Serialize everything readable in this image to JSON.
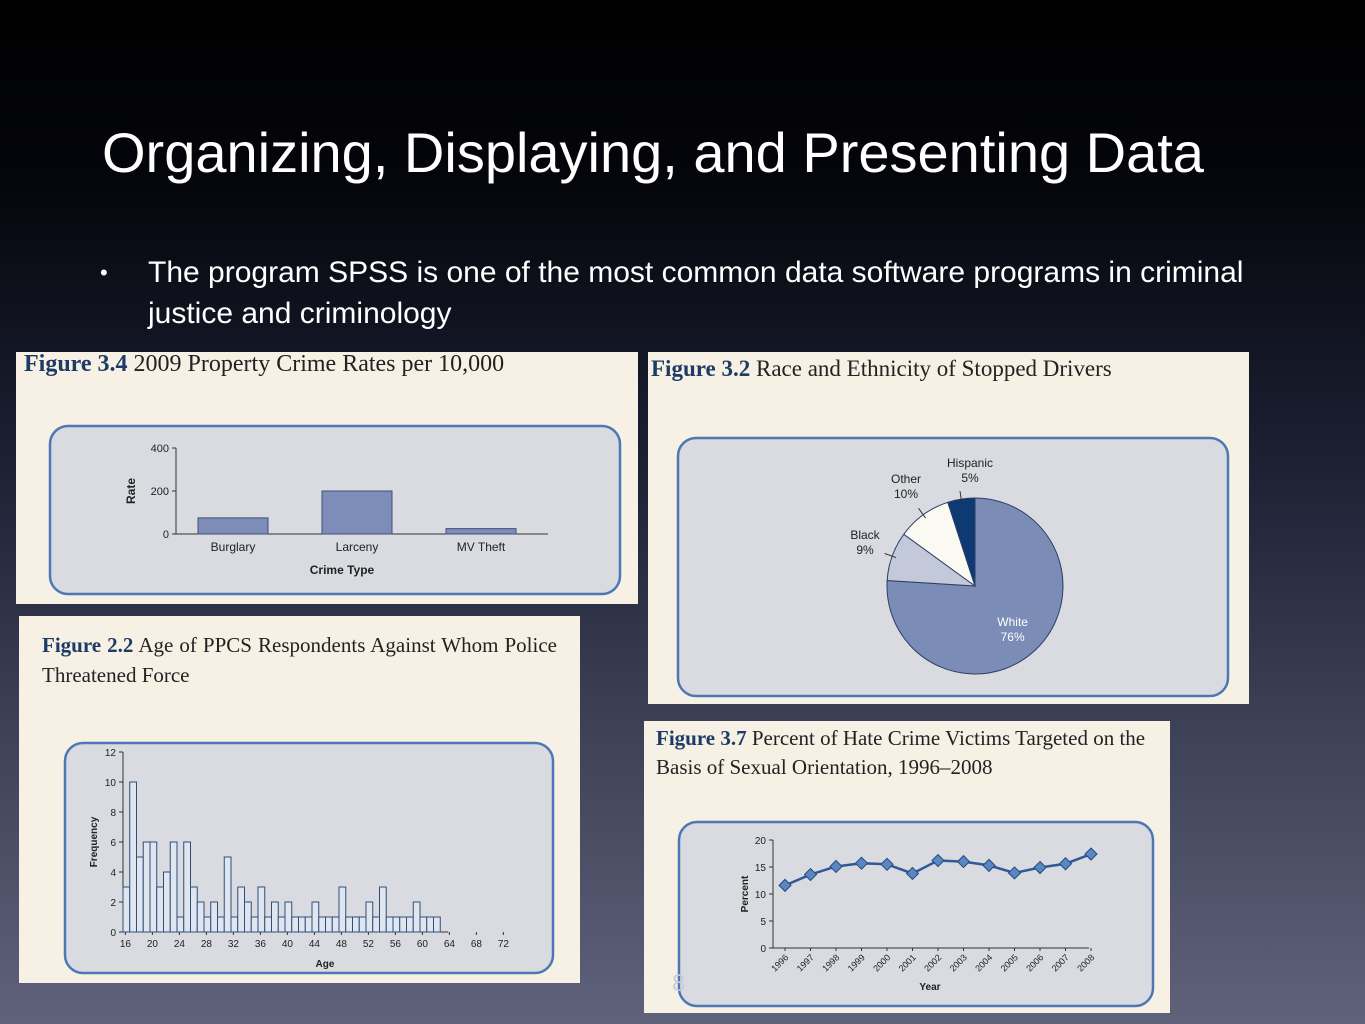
{
  "slide": {
    "title": "Organizing, Displaying, and Presenting Data",
    "bullet": "The program SPSS is one of the most common data software programs in criminal justice and criminology",
    "page_number": "8"
  },
  "colors": {
    "bar_fill": "#7e8db8",
    "pie_white": "#7b8cb6",
    "pie_black": "#c3c9d9",
    "pie_other": "#fbfaf2",
    "pie_hispanic": "#0e3a73",
    "line": "#2f5a96",
    "chart_bg": "#d9dbe0",
    "chart_border": "#4c78b4",
    "caption_number": "#1e3a66"
  },
  "chart_data": [
    {
      "id": "fig34",
      "type": "bar",
      "figure_number": "Figure 3.4",
      "title": "2009 Property Crime Rates per 10,000",
      "xlabel": "Crime Type",
      "ylabel": "Rate",
      "categories": [
        "Burglary",
        "Larceny",
        "MV Theft"
      ],
      "values": [
        75,
        200,
        25
      ],
      "ylim": [
        0,
        400
      ],
      "yticks": [
        "0",
        "200",
        "400"
      ]
    },
    {
      "id": "fig32",
      "type": "pie",
      "figure_number": "Figure 3.2",
      "title": "Race and Ethnicity of Stopped Drivers",
      "slices": [
        {
          "name": "White",
          "label": "76%",
          "value": 76
        },
        {
          "name": "Black",
          "label": "9%",
          "value": 9
        },
        {
          "name": "Other",
          "label": "10%",
          "value": 10
        },
        {
          "name": "Hispanic",
          "label": "5%",
          "value": 5
        }
      ]
    },
    {
      "id": "fig22",
      "type": "bar",
      "figure_number": "Figure 2.2",
      "title": "Age of PPCS Respondents Against Whom Police Threatened Force",
      "xlabel": "Age",
      "ylabel": "Frequency",
      "x_start": 16,
      "values": [
        3,
        10,
        5,
        6,
        6,
        3,
        4,
        6,
        1,
        6,
        3,
        2,
        1,
        2,
        1,
        5,
        1,
        3,
        2,
        1,
        3,
        1,
        2,
        1,
        2,
        1,
        1,
        1,
        2,
        1,
        1,
        1,
        3,
        1,
        1,
        1,
        2,
        1,
        3,
        1,
        1,
        1,
        1,
        2,
        1,
        1,
        1
      ],
      "ylim": [
        0,
        12
      ],
      "yticks": [
        "0",
        "2",
        "4",
        "6",
        "8",
        "10",
        "12"
      ],
      "xticks": [
        "16",
        "20",
        "24",
        "28",
        "32",
        "36",
        "40",
        "44",
        "48",
        "52",
        "56",
        "60",
        "64",
        "68",
        "72"
      ]
    },
    {
      "id": "fig37",
      "type": "line",
      "figure_number": "Figure 3.7",
      "title": "Percent of Hate Crime Victims Targeted on the Basis of Sexual Orientation, 1996–2008",
      "xlabel": "Year",
      "ylabel": "Percent",
      "x": [
        "1996",
        "1997",
        "1998",
        "1999",
        "2000",
        "2001",
        "2002",
        "2003",
        "2004",
        "2005",
        "2006",
        "2007",
        "2008"
      ],
      "values": [
        11.6,
        13.6,
        15.1,
        15.7,
        15.5,
        13.8,
        16.2,
        16.0,
        15.3,
        13.9,
        14.9,
        15.6,
        17.4
      ],
      "ylim": [
        0,
        20
      ],
      "yticks": [
        "0",
        "5",
        "10",
        "15",
        "20"
      ]
    }
  ]
}
